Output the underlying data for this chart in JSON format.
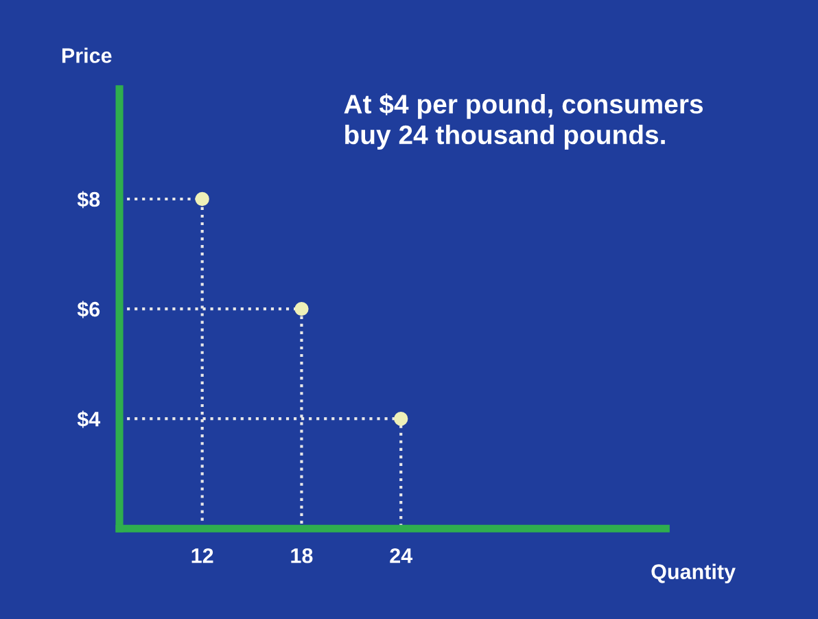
{
  "chart_data": {
    "type": "scatter",
    "xlabel": "Quantity",
    "ylabel": "Price",
    "annotations": [
      "At $4 per pound, consumers\nbuy 24 thousand pounds."
    ],
    "x": [
      12,
      18,
      24
    ],
    "series": [
      {
        "type": "line",
        "color": "#e8e8e8",
        "x": [
          7,
          12,
          12
        ],
        "values": [
          8,
          8,
          2
        ],
        "line_style": "dotted",
        "marker": "none"
      },
      {
        "type": "line",
        "color": "#e8e8e8",
        "x": [
          7,
          18,
          18
        ],
        "values": [
          6,
          6,
          2
        ],
        "line_style": "dotted",
        "marker": "none"
      },
      {
        "type": "line",
        "color": "#e8e8e8",
        "x": [
          7,
          24,
          24
        ],
        "values": [
          4,
          4,
          2
        ],
        "line_style": "dotted",
        "marker": "none"
      },
      {
        "color": "#eef0b8",
        "values": [
          8,
          6,
          4
        ],
        "marker": "circle"
      }
    ],
    "xlim": [
      7,
      40
    ],
    "ylim": [
      2,
      10
    ],
    "xticks": [
      12,
      18,
      24
    ],
    "yticks": [
      {
        "value": 4,
        "label": "$4"
      },
      {
        "value": 6,
        "label": "$6"
      },
      {
        "value": 8,
        "label": "$8"
      }
    ],
    "grid": false,
    "legend": false
  }
}
